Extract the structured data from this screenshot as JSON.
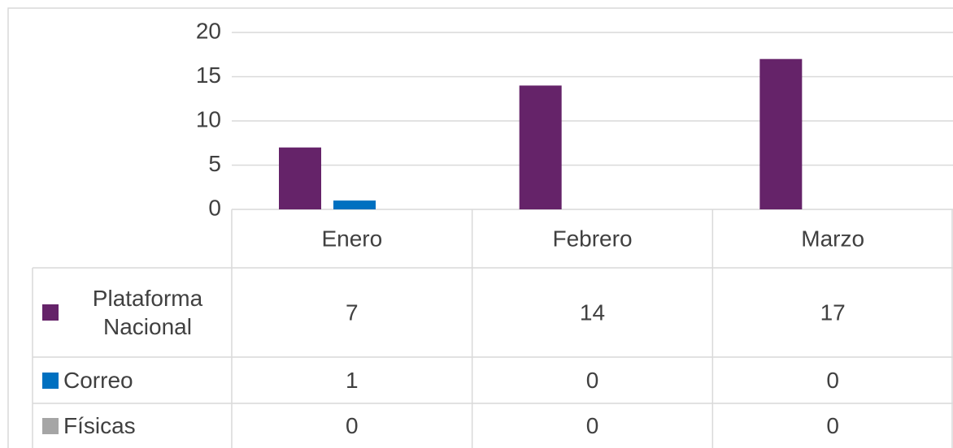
{
  "chart_data": {
    "type": "bar",
    "categories": [
      "Enero",
      "Febrero",
      "Marzo"
    ],
    "series": [
      {
        "name": "Plataforma Nacional",
        "color": "#652369",
        "values": [
          7,
          14,
          17
        ]
      },
      {
        "name": "Correo",
        "color": "#0070c0",
        "values": [
          1,
          0,
          0
        ]
      },
      {
        "name": "Físicas",
        "color": "#a5a5a5",
        "values": [
          0,
          0,
          0
        ]
      }
    ],
    "ylim": [
      0,
      20
    ],
    "yticks": [
      0,
      5,
      10,
      15,
      20
    ],
    "grid": true,
    "data_table": true
  }
}
